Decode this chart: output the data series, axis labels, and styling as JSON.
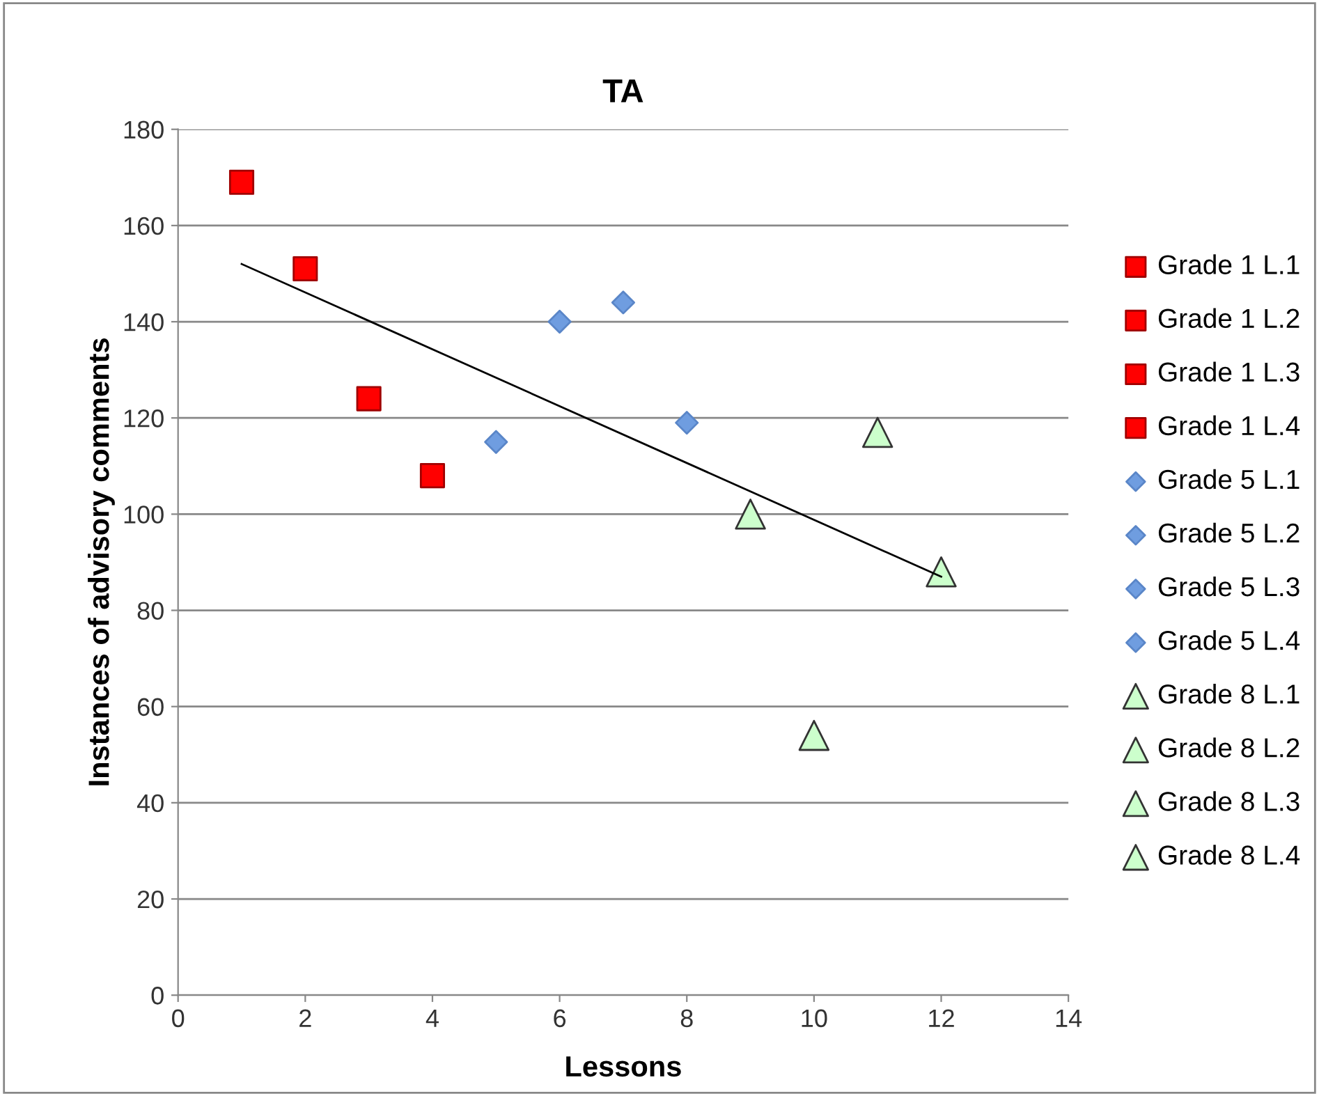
{
  "chart_data": {
    "type": "scatter",
    "title": "TA",
    "xlabel": "Lessons",
    "ylabel": "Instances of advisory comments",
    "xlim": [
      0,
      14
    ],
    "xticks": [
      0,
      2,
      4,
      6,
      8,
      10,
      12,
      14
    ],
    "ylim": [
      0,
      180
    ],
    "yticks": [
      0,
      20,
      40,
      60,
      80,
      100,
      120,
      140,
      160,
      180
    ],
    "grid": "y",
    "legend": "right",
    "series": [
      {
        "name": "Grade 1 L.1",
        "color": "#ff0000",
        "marker": "square",
        "x": [
          1
        ],
        "values": [
          169
        ]
      },
      {
        "name": "Grade 1 L.2",
        "color": "#ff0000",
        "marker": "square",
        "x": [
          2
        ],
        "values": [
          151
        ]
      },
      {
        "name": "Grade 1 L.3",
        "color": "#ff0000",
        "marker": "square",
        "x": [
          3
        ],
        "values": [
          124
        ]
      },
      {
        "name": "Grade 1 L.4",
        "color": "#ff0000",
        "marker": "square",
        "x": [
          4
        ],
        "values": [
          108
        ]
      },
      {
        "name": "Grade 5 L.1",
        "color": "#6f9de0",
        "marker": "diamond",
        "x": [
          5
        ],
        "values": [
          115
        ]
      },
      {
        "name": "Grade 5 L.2",
        "color": "#6f9de0",
        "marker": "diamond",
        "x": [
          6
        ],
        "values": [
          140
        ]
      },
      {
        "name": "Grade 5 L.3",
        "color": "#6f9de0",
        "marker": "diamond",
        "x": [
          7
        ],
        "values": [
          144
        ]
      },
      {
        "name": "Grade 5 L.4",
        "color": "#6f9de0",
        "marker": "diamond",
        "x": [
          8
        ],
        "values": [
          119
        ]
      },
      {
        "name": "Grade 8 L.1",
        "color": "#ccffcc",
        "marker": "triangle",
        "x": [
          9
        ],
        "values": [
          100
        ]
      },
      {
        "name": "Grade 8 L.2",
        "color": "#ccffcc",
        "marker": "triangle",
        "x": [
          10
        ],
        "values": [
          54
        ]
      },
      {
        "name": "Grade 8 L.3",
        "color": "#ccffcc",
        "marker": "triangle",
        "x": [
          11
        ],
        "values": [
          117
        ]
      },
      {
        "name": "Grade 8 L.4",
        "color": "#ccffcc",
        "marker": "triangle",
        "x": [
          12
        ],
        "values": [
          88
        ]
      },
      {
        "type": "line",
        "color": "#000000",
        "marker": "none",
        "line_style": "solid",
        "x": [
          1,
          12
        ],
        "values": [
          152,
          87
        ]
      }
    ]
  }
}
